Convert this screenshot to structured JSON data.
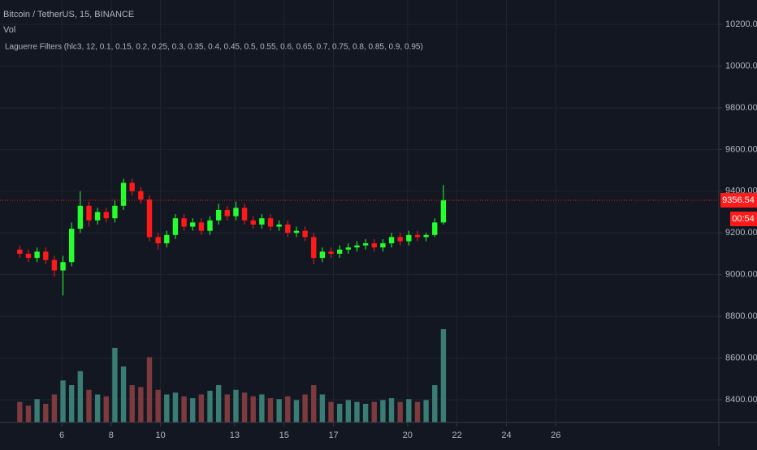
{
  "chart_data": {
    "type": "candlestick",
    "title": "Bitcoin / TetherUS, 15, BINANCE",
    "volume_label": "Vol",
    "indicator_label": "Laguerre Filters (hlc3, 12, 0.1, 0.15, 0.2, 0.25, 0.3, 0.35, 0.4, 0.45, 0.5, 0.55, 0.6, 0.65, 0.7, 0.75, 0.8, 0.85, 0.9, 0.95)",
    "x": [
      4.3,
      4.65,
      5,
      5.35,
      5.7,
      6.05,
      6.4,
      6.75,
      7.1,
      7.45,
      7.8,
      8.15,
      8.5,
      8.85,
      9.2,
      9.55,
      9.9,
      10.25,
      10.6,
      10.95,
      11.3,
      11.65,
      12,
      12.35,
      12.7,
      13.05,
      13.4,
      13.75,
      14.1,
      14.45,
      14.8,
      15.15,
      15.5,
      15.85,
      16.2,
      16.55,
      16.9,
      17.25,
      17.6,
      17.95,
      18.3,
      18.65,
      19,
      19.35,
      19.7,
      20.05,
      20.4,
      20.75,
      21.1,
      21.45
    ],
    "open": [
      9120,
      9100,
      9080,
      9110,
      9070,
      9020,
      9060,
      9220,
      9330,
      9260,
      9300,
      9270,
      9330,
      9440,
      9400,
      9360,
      9180,
      9150,
      9190,
      9270,
      9230,
      9250,
      9210,
      9260,
      9310,
      9280,
      9320,
      9260,
      9240,
      9270,
      9230,
      9240,
      9200,
      9210,
      9180,
      9080,
      9110,
      9100,
      9120,
      9130,
      9140,
      9150,
      9130,
      9150,
      9180,
      9160,
      9190,
      9180,
      9190,
      9250
    ],
    "high": [
      9140,
      9120,
      9130,
      9130,
      9090,
      9090,
      9250,
      9400,
      9350,
      9320,
      9320,
      9360,
      9460,
      9460,
      9420,
      9380,
      9200,
      9210,
      9290,
      9290,
      9270,
      9270,
      9280,
      9340,
      9330,
      9350,
      9340,
      9280,
      9290,
      9290,
      9260,
      9260,
      9230,
      9230,
      9200,
      9130,
      9130,
      9140,
      9150,
      9160,
      9170,
      9170,
      9170,
      9200,
      9200,
      9210,
      9210,
      9200,
      9270,
      9430
    ],
    "low": [
      9080,
      9060,
      9060,
      9050,
      8990,
      8900,
      9040,
      9200,
      9230,
      9240,
      9250,
      9250,
      9310,
      9380,
      9340,
      9160,
      9120,
      9130,
      9170,
      9210,
      9210,
      9190,
      9190,
      9240,
      9260,
      9260,
      9240,
      9220,
      9220,
      9210,
      9210,
      9180,
      9180,
      9160,
      9050,
      9060,
      9080,
      9080,
      9100,
      9110,
      9120,
      9110,
      9110,
      9130,
      9140,
      9140,
      9160,
      9160,
      9180,
      9240
    ],
    "close": [
      9100,
      9080,
      9110,
      9070,
      9020,
      9060,
      9220,
      9330,
      9260,
      9300,
      9270,
      9330,
      9440,
      9400,
      9360,
      9180,
      9150,
      9190,
      9270,
      9230,
      9250,
      9210,
      9260,
      9310,
      9280,
      9320,
      9260,
      9240,
      9270,
      9230,
      9240,
      9200,
      9210,
      9180,
      9080,
      9110,
      9100,
      9120,
      9130,
      9140,
      9150,
      9130,
      9150,
      9180,
      9160,
      9190,
      9180,
      9190,
      9250,
      9357
    ],
    "volume": [
      22,
      18,
      25,
      20,
      30,
      45,
      40,
      55,
      35,
      30,
      28,
      80,
      60,
      40,
      38,
      70,
      35,
      30,
      32,
      28,
      26,
      30,
      34,
      40,
      30,
      35,
      32,
      28,
      30,
      26,
      25,
      28,
      24,
      30,
      40,
      30,
      22,
      20,
      24,
      22,
      20,
      22,
      24,
      26,
      22,
      25,
      22,
      24,
      40,
      100
    ],
    "up_color": "#26ff2e",
    "down_color": "#ff1a1a",
    "volume_up_color": "#3a7d74",
    "volume_down_color": "#7d3b3e",
    "xlim": [
      3.5,
      32.6
    ],
    "ylim": [
      8287,
      10317
    ],
    "xticks": [
      6,
      8,
      10,
      13,
      15,
      17,
      20,
      22,
      24,
      26
    ],
    "yticks": [
      {
        "value": 8400,
        "label": "8400.00"
      },
      {
        "value": 8600,
        "label": "8600.00"
      },
      {
        "value": 8800,
        "label": "8800.00"
      },
      {
        "value": 9000,
        "label": "9000.00"
      },
      {
        "value": 9200,
        "label": "9200.00"
      },
      {
        "value": 9400,
        "label": "9400.00"
      },
      {
        "value": 9600,
        "label": "9600.00"
      },
      {
        "value": 9800,
        "label": "9800.00"
      },
      {
        "value": 10000,
        "label": "10000.00"
      },
      {
        "value": 10200,
        "label": "10200.00"
      }
    ],
    "grid": true,
    "last_price": 9356.54,
    "countdown": "00:54"
  }
}
